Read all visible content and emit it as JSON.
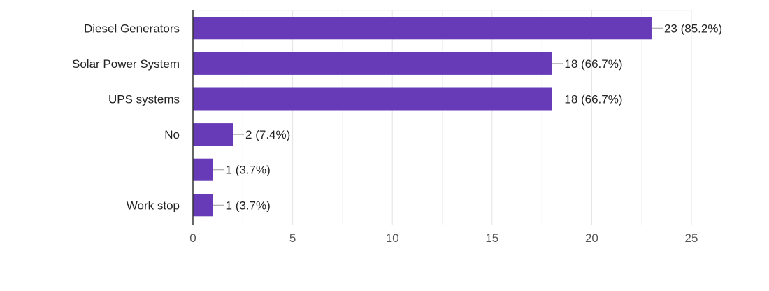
{
  "chart_data": {
    "type": "bar",
    "orientation": "horizontal",
    "title": "",
    "xlabel": "",
    "ylabel": "",
    "categories": [
      "Diesel Generators",
      "Solar Power System",
      "UPS systems",
      "No",
      "",
      "Work stop"
    ],
    "values": [
      23,
      18,
      18,
      2,
      1,
      1
    ],
    "data_labels": [
      "23 (85.2%)",
      "18 (66.7%)",
      "18 (66.7%)",
      "2 (7.4%)",
      "1 (3.7%)",
      "1 (3.7%)"
    ],
    "xlim": [
      0,
      25
    ],
    "xticks": [
      0,
      5,
      10,
      15,
      20,
      25
    ],
    "xtick_labels": [
      "0",
      "5",
      "10",
      "15",
      "20",
      "25"
    ],
    "grid": true,
    "legend": "none",
    "colors": {
      "bar": "#673AB7",
      "grid": "#e6e6e6",
      "axis": "#333333",
      "leader": "#999999"
    }
  }
}
